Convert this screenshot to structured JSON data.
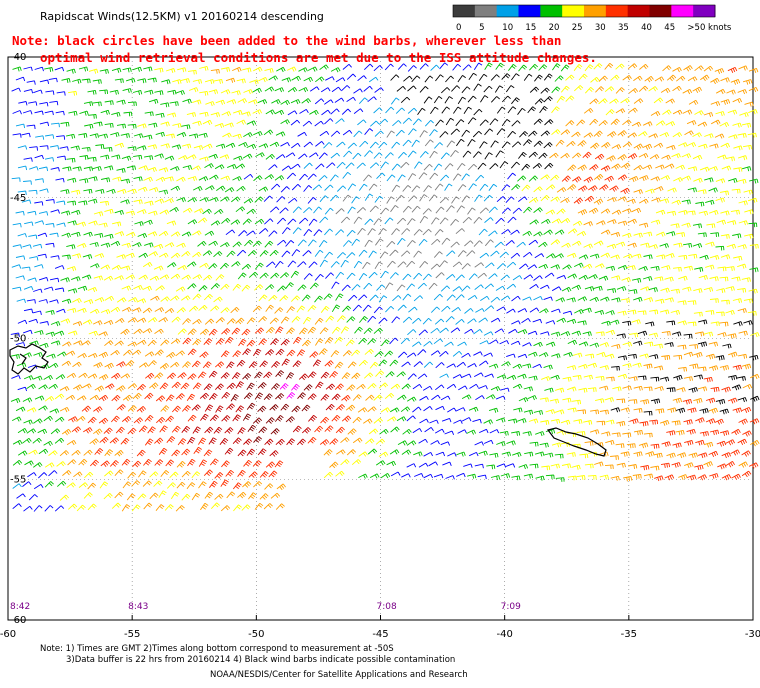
{
  "header": {
    "title": "Rapidscat Winds(12.5KM) v1 20160214 descending",
    "note_line1": "Note: black circles have been added to the wind barbs, wherever less than",
    "note_line2": "optimal wind retrieval conditions are met due to the ISS attitude changes."
  },
  "color_scale": {
    "labels": [
      "0",
      "5",
      "10",
      "15",
      "20",
      "25",
      "30",
      "35",
      "40",
      "45",
      ">50 knots"
    ],
    "colors": [
      "#3c3c3c",
      "#7f7f7f",
      "#00a0e8",
      "#0000ff",
      "#00c000",
      "#ffff00",
      "#ffa000",
      "#ff3000",
      "#c00000",
      "#800000",
      "#ff00ff",
      "#8000c0"
    ]
  },
  "map": {
    "lon_labels": [
      "-60",
      "-55",
      "-50",
      "-45",
      "-40",
      "-35",
      "-30"
    ],
    "lat_labels": [
      "-40",
      "-45",
      "-50",
      "-55",
      "-60"
    ],
    "lat_values": [
      -40,
      -45,
      -50,
      -55,
      -60
    ],
    "lon_range": [
      -60,
      -30
    ],
    "lat_range": [
      -40,
      -60
    ],
    "times": [
      {
        "label": "8:42",
        "lon": -60
      },
      {
        "label": "8:43",
        "lon": -55
      },
      {
        "label": "7:08",
        "lon": -45
      },
      {
        "label": "7:09",
        "lon": -40
      }
    ]
  },
  "footer": {
    "line1": "Note: 1) Times are GMT 2)Times along bottom correspond to measurement at -50S",
    "line2": "3)Data buffer is 22 hrs from 20160214 4) Black wind barbs indicate possible contamination",
    "line3": "NOAA/NESDIS/Center for Satellite Applications and Research"
  }
}
